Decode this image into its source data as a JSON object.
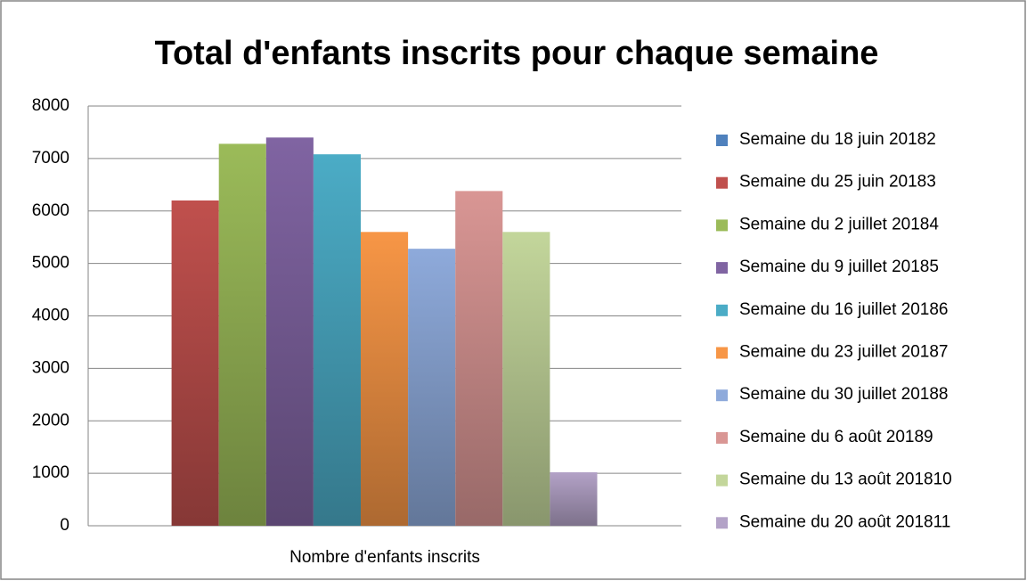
{
  "chart_data": {
    "type": "bar",
    "title": "Total d'enfants inscrits pour chaque semaine",
    "categories": [
      "Nombre d'enfants inscrits"
    ],
    "series": [
      {
        "name": "Semaine du 18 juin 20182",
        "color": "#4f81bd",
        "values": [
          0
        ]
      },
      {
        "name": "Semaine du 25 juin 20183",
        "color": "#c0504d",
        "values": [
          6200
        ]
      },
      {
        "name": "Semaine du 2 juillet 20184",
        "color": "#9bbb59",
        "values": [
          7280
        ]
      },
      {
        "name": "Semaine du 9 juillet 20185",
        "color": "#8064a2",
        "values": [
          7400
        ]
      },
      {
        "name": "Semaine du 16 juillet 20186",
        "color": "#4bacc6",
        "values": [
          7080
        ]
      },
      {
        "name": "Semaine du 23 juillet 20187",
        "color": "#f79646",
        "values": [
          5600
        ]
      },
      {
        "name": "Semaine du 30 juillet 20188",
        "color": "#8eaadb",
        "values": [
          5280
        ]
      },
      {
        "name": "Semaine du 6 août 20189",
        "color": "#d99694",
        "values": [
          6380
        ]
      },
      {
        "name": "Semaine du 13 août 201810",
        "color": "#c3d69b",
        "values": [
          5600
        ]
      },
      {
        "name": "Semaine du 20 août 201811",
        "color": "#b3a2c7",
        "values": [
          1020
        ]
      }
    ],
    "ylim": [
      0,
      8000
    ],
    "yticks": [
      0,
      1000,
      2000,
      3000,
      4000,
      5000,
      6000,
      7000,
      8000
    ],
    "grid": true,
    "legend": "right"
  }
}
